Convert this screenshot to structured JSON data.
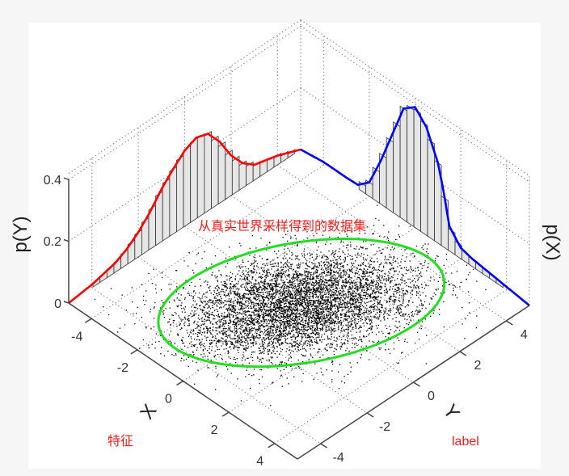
{
  "chart_data": {
    "type": "scatter",
    "xlabel": "X",
    "ylabel": "Y",
    "zlabel_left": "p(Y)",
    "zlabel_right": "p(X)",
    "xlim": [
      -5,
      5
    ],
    "ylim": [
      -5,
      5
    ],
    "zlim": [
      0,
      0.42
    ],
    "x_ticks": [
      "-4",
      "-2",
      "0",
      "2",
      "4"
    ],
    "y_ticks": [
      "-4",
      "-2",
      "0",
      "2",
      "4"
    ],
    "z_ticks": [
      "0",
      "0.2",
      "0.4"
    ],
    "grid": true,
    "marginal_y": {
      "color": "#ff0000",
      "y": [
        -5,
        -4.5,
        -4,
        -3.5,
        -3,
        -2.5,
        -2,
        -1.5,
        -1,
        -0.5,
        0,
        0.5,
        1,
        1.5,
        2,
        2.5,
        3,
        3.5,
        4,
        4.5,
        5
      ],
      "density": [
        0,
        0.005,
        0.01,
        0.02,
        0.03,
        0.05,
        0.08,
        0.12,
        0.17,
        0.21,
        0.245,
        0.262,
        0.25,
        0.2,
        0.13,
        0.08,
        0.05,
        0.04,
        0.03,
        0.015,
        0
      ]
    },
    "marginal_x": {
      "color": "#0000ff",
      "x": [
        -5,
        -4.5,
        -4,
        -3.5,
        -3,
        -2.5,
        -2,
        -1.5,
        -1,
        -0.5,
        0,
        0.5,
        1,
        1.25,
        1.5,
        2,
        2.5,
        3,
        3.5,
        4,
        4.5,
        5
      ],
      "density": [
        0,
        0.005,
        0.01,
        0.01,
        0.01,
        0.012,
        0.045,
        0.14,
        0.25,
        0.36,
        0.39,
        0.35,
        0.26,
        0.18,
        0.08,
        0.035,
        0.025,
        0.02,
        0.015,
        0.01,
        0.005,
        0
      ]
    },
    "scatter": {
      "color": "#000000",
      "distribution": "gaussian",
      "mean": [
        0,
        0
      ]
    },
    "ellipse": {
      "color": "#22dd22",
      "center": [
        0,
        0.1
      ],
      "major_axis": [
        2.4,
        3.8
      ],
      "minor_axis": [
        -2.05,
        1.85
      ]
    }
  },
  "annotations": {
    "dataset": "从真实世界采样得到的数据集",
    "feature": "特征",
    "label": "label",
    "color": "#ff0000"
  }
}
